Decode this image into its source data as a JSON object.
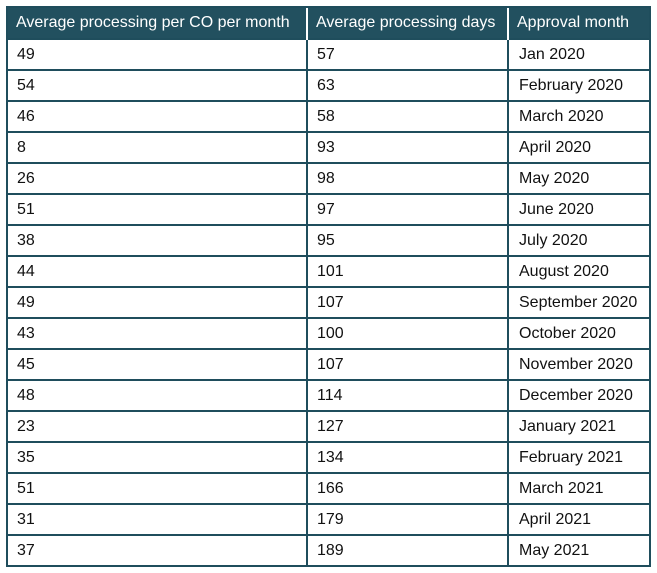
{
  "table": {
    "headers": [
      "Average processing per CO per month",
      "Average processing days",
      "Approval month"
    ],
    "rows": [
      [
        "49",
        "57",
        "Jan 2020"
      ],
      [
        "54",
        "63",
        "February 2020"
      ],
      [
        "46",
        "58",
        "March 2020"
      ],
      [
        "8",
        "93",
        "April 2020"
      ],
      [
        "26",
        "98",
        "May 2020"
      ],
      [
        "51",
        "97",
        "June 2020"
      ],
      [
        "38",
        "95",
        "July 2020"
      ],
      [
        "44",
        "101",
        "August 2020"
      ],
      [
        "49",
        "107",
        "September 2020"
      ],
      [
        "43",
        "100",
        "October 2020"
      ],
      [
        "45",
        "107",
        "November 2020"
      ],
      [
        "48",
        "114",
        "December 2020"
      ],
      [
        "23",
        "127",
        "January 2021"
      ],
      [
        "35",
        "134",
        "February 2021"
      ],
      [
        "51",
        "166",
        "March 2021"
      ],
      [
        "31",
        "179",
        "April 2021"
      ],
      [
        "37",
        "189",
        "May 2021"
      ]
    ]
  },
  "colors": {
    "header_bg": "#22505f",
    "border": "#1f4d5c",
    "header_text": "#ffffff"
  }
}
